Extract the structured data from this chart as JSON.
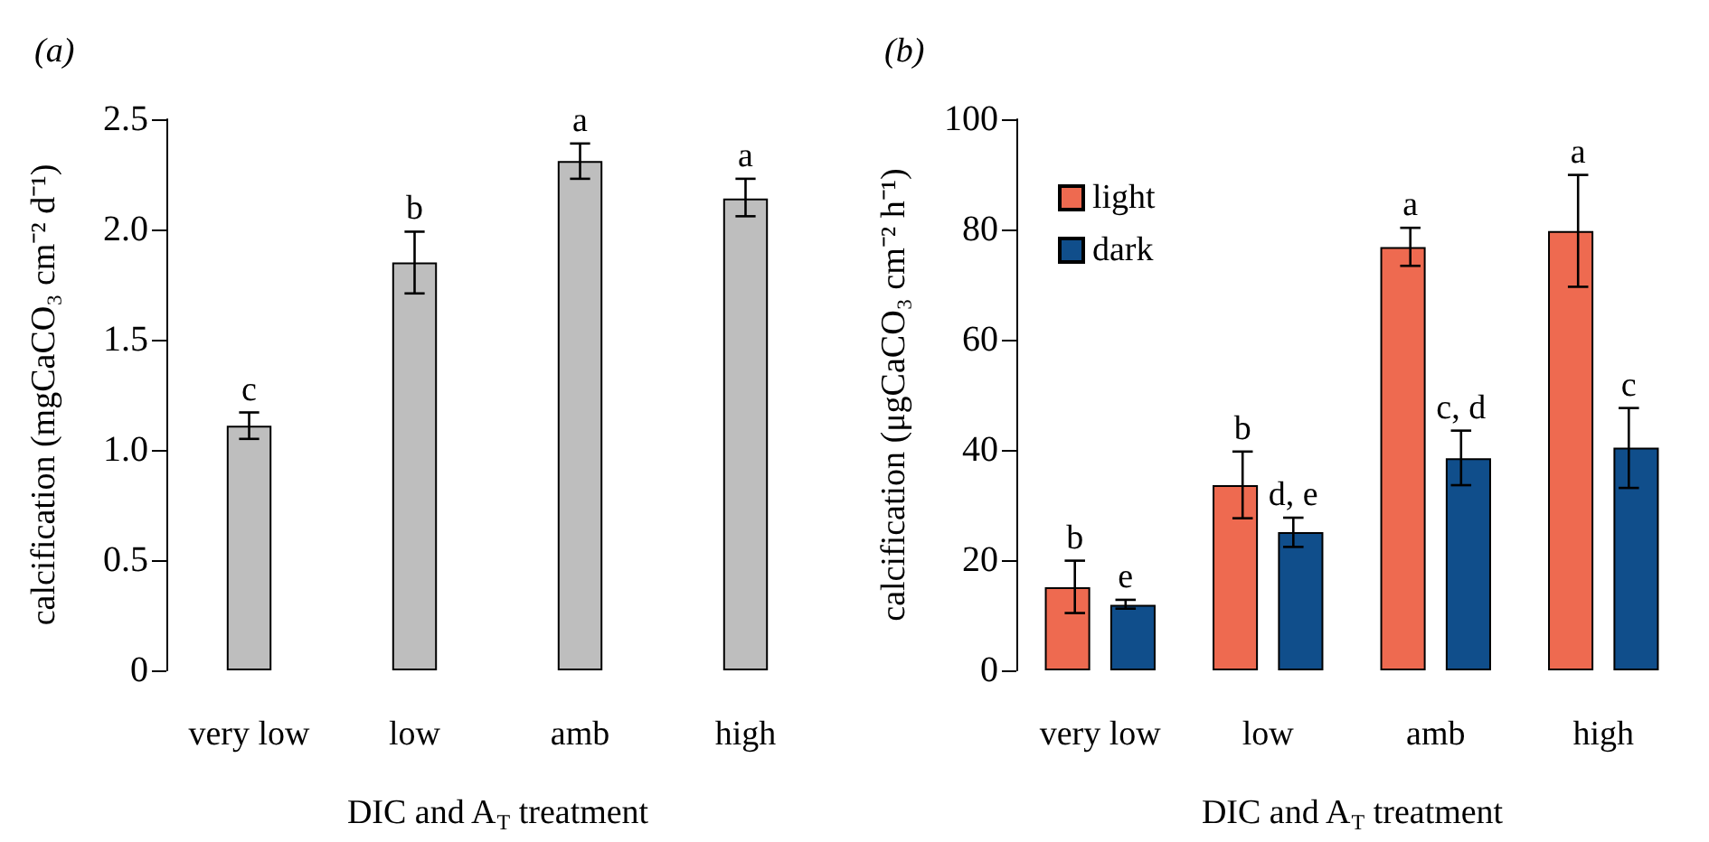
{
  "chart_data": [
    {
      "type": "bar",
      "title": "(a)",
      "xlabel": "DIC and A$_{T}$ treatment",
      "ylabel": "calcification (mgCaCO₃ cm⁻² d⁻¹)",
      "categories": [
        "very low",
        "low",
        "amb",
        "high"
      ],
      "values": [
        1.11,
        1.85,
        2.31,
        2.14
      ],
      "color": "#bebebe",
      "errors": [
        [
          1.05,
          1.17
        ],
        [
          1.71,
          1.99
        ],
        [
          2.23,
          2.39
        ],
        [
          2.06,
          2.23
        ]
      ],
      "value_labels": [
        "c",
        "b",
        "a",
        "a"
      ],
      "ylim": [
        0,
        2.5
      ],
      "yticks": [
        0,
        0.5,
        {
          "value": 1,
          "label": "1.0"
        },
        1.5,
        {
          "value": 2,
          "label": "2.0"
        },
        2.5
      ],
      "grid": false
    },
    {
      "type": "bar",
      "title": "(b)",
      "xlabel": "DIC and A$_{T}$ treatment",
      "ylabel": "calcification (μgCaCO₃ cm⁻² h⁻¹)",
      "categories": [
        "very low",
        "low",
        "amb",
        "high"
      ],
      "series": [
        {
          "name": "light",
          "color": "#ee6a50",
          "values": [
            15.1,
            33.6,
            76.8,
            79.7
          ],
          "errors": [
            [
              10.4,
              19.9
            ],
            [
              27.6,
              39.7
            ],
            [
              73.4,
              80.3
            ],
            [
              69.6,
              89.9
            ]
          ],
          "value_labels": [
            "b",
            "b",
            "a",
            "a"
          ]
        },
        {
          "name": "dark",
          "color": "#104e8b",
          "values": [
            11.9,
            25.1,
            38.5,
            40.4
          ],
          "errors": [
            [
              11.2,
              12.8
            ],
            [
              22.4,
              27.7
            ],
            [
              33.6,
              43.5
            ],
            [
              33.1,
              47.6
            ]
          ],
          "value_labels": [
            "e",
            "d, e",
            "c, d",
            "c"
          ]
        }
      ],
      "ylim": [
        0,
        100
      ],
      "yticks": [
        0,
        20,
        40,
        60,
        80,
        100
      ],
      "grid": false,
      "legend": "top left"
    }
  ]
}
